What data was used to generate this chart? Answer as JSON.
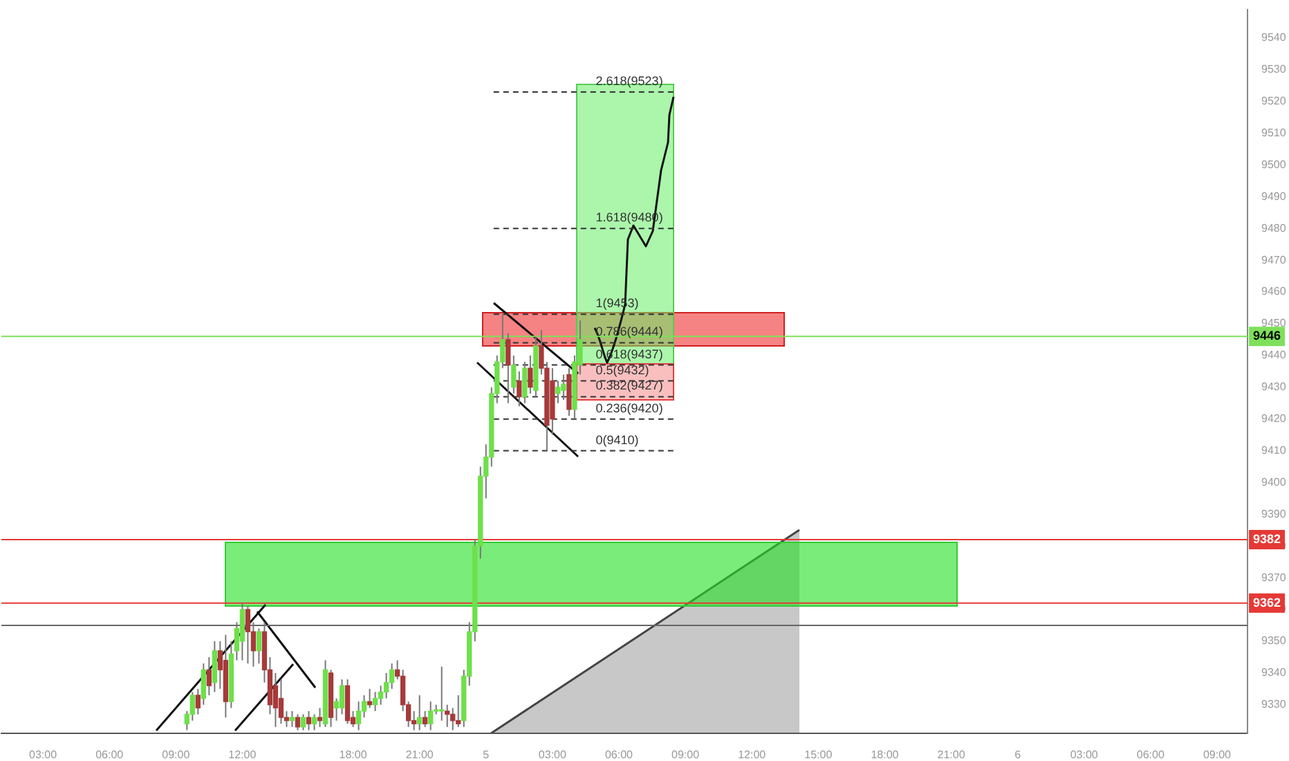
{
  "chart_data": {
    "type": "candlestick",
    "categories": [
      null,
      null,
      null,
      null,
      null,
      null,
      null,
      "03:00",
      null,
      null,
      null,
      null,
      null,
      null,
      null,
      null,
      null,
      null,
      null,
      "06:00",
      null,
      null,
      null,
      null,
      null,
      null,
      null,
      null,
      null,
      null,
      null,
      "09:00",
      null,
      null,
      null,
      null,
      null,
      null,
      null,
      null,
      null,
      null,
      null,
      "12:00",
      null,
      null,
      null,
      null,
      null,
      null,
      null,
      null,
      null,
      null,
      null,
      null,
      null,
      null,
      null,
      null,
      null,
      null,
      null,
      "18:00",
      null,
      null,
      null,
      null,
      null,
      null,
      null,
      null,
      null,
      null,
      null,
      "21:00",
      null,
      null,
      null,
      null,
      null,
      null,
      null,
      null,
      null,
      null,
      null,
      "5",
      null,
      null,
      null,
      null,
      null,
      null,
      null,
      null,
      null,
      null,
      null,
      "03:00",
      null,
      null,
      null,
      null,
      null,
      null,
      null,
      null,
      null,
      null,
      null,
      "06:00",
      null,
      null,
      null,
      null,
      null,
      null,
      null,
      null,
      null,
      null,
      null,
      "09:00",
      null,
      null,
      null,
      null,
      null,
      null,
      null,
      null,
      null,
      null,
      null,
      "12:00",
      null,
      null,
      null,
      null,
      null,
      null,
      null,
      null,
      null,
      null,
      null,
      "15:00",
      null,
      null,
      null,
      null,
      null,
      null,
      null,
      null,
      null,
      null,
      null,
      "18:00",
      null,
      null,
      null,
      null,
      null,
      null,
      null,
      null,
      null,
      null,
      null,
      "21:00",
      null,
      null,
      null,
      null,
      null,
      null,
      null,
      null,
      null,
      null,
      null,
      "6",
      null,
      null,
      null,
      null,
      null,
      null,
      null,
      null,
      null,
      null,
      null,
      "03:00",
      null,
      null,
      null,
      null,
      null,
      null,
      null,
      null,
      null,
      null,
      null,
      "06:00",
      null,
      null,
      null,
      null,
      null,
      null,
      null,
      null,
      null,
      null,
      null,
      "09:00",
      null,
      null,
      null,
      null,
      null
    ],
    "ohlc": [
      null,
      null,
      null,
      null,
      null,
      null,
      null,
      null,
      null,
      null,
      null,
      null,
      null,
      null,
      null,
      null,
      null,
      null,
      null,
      null,
      null,
      null,
      null,
      null,
      null,
      null,
      null,
      null,
      null,
      null,
      null,
      null,
      null,
      [
        9324,
        9328,
        9322,
        9327
      ],
      [
        9327,
        9334,
        9325,
        9333
      ],
      [
        9333,
        9335,
        9327,
        9329
      ],
      [
        9332,
        9343,
        9330,
        9341
      ],
      [
        9341,
        9345,
        9333,
        9336
      ],
      [
        9337,
        9350,
        9334,
        9347
      ],
      [
        9347,
        9350,
        9335,
        9341
      ],
      [
        9344,
        9352,
        9326,
        9331
      ],
      [
        9331,
        9350,
        9329,
        9346
      ],
      [
        9347,
        9356,
        9344,
        9354
      ],
      [
        9350,
        9362,
        9344,
        9360
      ],
      [
        9360,
        9361,
        9343,
        9353
      ],
      [
        9353,
        9356,
        9342,
        9347
      ],
      [
        9347,
        9354,
        9343,
        9353
      ],
      [
        9353,
        9356,
        9337,
        9341
      ],
      [
        9341,
        9345,
        9327,
        9330
      ],
      [
        9336,
        9340,
        9323,
        9329
      ],
      [
        9332,
        9338,
        9324,
        9326
      ],
      [
        9326,
        9328,
        9323,
        9325
      ],
      [
        9325,
        9328,
        9323,
        9326
      ],
      [
        9326,
        9327,
        9322,
        9323
      ],
      [
        9323,
        9327,
        9322,
        9326
      ],
      [
        9326,
        9328,
        9322,
        9324
      ],
      [
        9324,
        9327,
        9322,
        9326
      ],
      [
        9326,
        9329,
        9323,
        9325
      ],
      [
        9324,
        9344,
        9323,
        9341
      ],
      [
        9340,
        9341,
        9323,
        9326
      ],
      [
        9329,
        9332,
        9325,
        9331
      ],
      [
        9329,
        9338,
        9327,
        9336
      ],
      [
        9336,
        9338,
        9324,
        9325
      ],
      [
        9326,
        9328,
        9323,
        9324
      ],
      [
        9324,
        9331,
        9322,
        9328
      ],
      [
        9328,
        9333,
        9326,
        9331
      ],
      [
        9331,
        9335,
        9329,
        9330
      ],
      [
        9330,
        9334,
        9328,
        9332
      ],
      [
        9332,
        9336,
        9330,
        9334
      ],
      [
        9334,
        9340,
        9332,
        9337
      ],
      [
        9337,
        9343,
        9335,
        9341
      ],
      [
        9341,
        9344,
        9338,
        9339
      ],
      [
        9339,
        9341,
        9328,
        9330
      ],
      [
        9330,
        9331,
        9323,
        9325
      ],
      [
        9325,
        9328,
        9322,
        9324
      ],
      [
        9324,
        9333,
        9322,
        9326
      ],
      [
        9326,
        9328,
        9323,
        9324
      ],
      [
        9324,
        9331,
        9322,
        9328
      ],
      [
        9328,
        9330,
        9327,
        9328
      ],
      [
        9328,
        9342,
        9325,
        9328
      ],
      [
        9328,
        9330,
        9323,
        9327
      ],
      [
        9327,
        9329,
        9322,
        9325
      ],
      [
        9325,
        9333,
        9323,
        9324
      ],
      [
        9325,
        9341,
        9323,
        9339
      ],
      [
        9339,
        9356,
        9336,
        9353
      ],
      [
        9353,
        9382,
        9350,
        9380
      ],
      [
        9380,
        9405,
        9376,
        9402
      ],
      [
        9402,
        9412,
        9395,
        9408
      ],
      [
        9408,
        9430,
        9405,
        9428
      ],
      [
        9428,
        9440,
        9425,
        9438
      ],
      [
        9438,
        9453,
        9436,
        9445
      ],
      [
        9445,
        9447,
        9425,
        9437
      ],
      [
        9430,
        9440,
        9428,
        9437
      ],
      [
        9432,
        9435,
        9424,
        9427
      ],
      [
        9427,
        9438,
        9425,
        9436
      ],
      [
        9436,
        9440,
        9428,
        9430
      ],
      [
        9429,
        9446,
        9427,
        9443
      ],
      [
        9443,
        9448,
        9434,
        9436
      ],
      [
        9436,
        9438,
        9410,
        9418
      ],
      [
        9432,
        9436,
        9415,
        9420
      ],
      [
        9428,
        9432,
        9425,
        9430
      ],
      [
        9429,
        9434,
        9426,
        9431
      ],
      [
        9434,
        9436,
        9421,
        9423
      ],
      [
        9423,
        9440,
        9420,
        9438
      ],
      [
        9437,
        9451,
        9434,
        9445
      ],
      null,
      null,
      null,
      null,
      null,
      null,
      null,
      null,
      null,
      null,
      null,
      null,
      null,
      null,
      null,
      null,
      null,
      null,
      null,
      null,
      null,
      null,
      null,
      null,
      null,
      null,
      null,
      null,
      null,
      null,
      null,
      null,
      null,
      null,
      null,
      null,
      null,
      null,
      null,
      null,
      null,
      null,
      null,
      null,
      null,
      null,
      null,
      null,
      null,
      null,
      null,
      null,
      null,
      null,
      null,
      null,
      null,
      null,
      null,
      null,
      null,
      null,
      null,
      null,
      null,
      null,
      null,
      null,
      null,
      null,
      null,
      null,
      null,
      null,
      null,
      null,
      null,
      null,
      null,
      null,
      null,
      null,
      null,
      null,
      null,
      null,
      null,
      null,
      null,
      null,
      null,
      null,
      null,
      null,
      null,
      null,
      null,
      null,
      null,
      null,
      null,
      null,
      null,
      null,
      null,
      null,
      null,
      null,
      null,
      null,
      null,
      null,
      null,
      null,
      null,
      null,
      null,
      null,
      null,
      null
    ],
    "colors": [
      null,
      null,
      null,
      null,
      null,
      null,
      null,
      null,
      null,
      null,
      null,
      null,
      null,
      null,
      null,
      null,
      null,
      null,
      null,
      null,
      null,
      null,
      null,
      null,
      null,
      null,
      null,
      null,
      null,
      null,
      null,
      null,
      null,
      "#6ee04a",
      "#6ee04a",
      "#a63a3a",
      "#6ee04a",
      "#a63a3a",
      "#6ee04a",
      "#a63a3a",
      "#a63a3a",
      "#6ee04a",
      "#6ee04a",
      "#6ee04a",
      "#a63a3a",
      "#a63a3a",
      "#6ee04a",
      "#a63a3a",
      "#a63a3a",
      "#a63a3a",
      "#a63a3a",
      "#a63a3a",
      "#6ee04a",
      "#a63a3a",
      "#6ee04a",
      "#a63a3a",
      "#6ee04a",
      "#a63a3a",
      "#6ee04a",
      "#a63a3a",
      "#6ee04a",
      "#6ee04a",
      "#a63a3a",
      "#a63a3a",
      "#6ee04a",
      "#6ee04a",
      "#a63a3a",
      "#6ee04a",
      "#6ee04a",
      "#6ee04a",
      "#6ee04a",
      "#a63a3a",
      "#a63a3a",
      "#a63a3a",
      "#a63a3a",
      "#6ee04a",
      "#a63a3a",
      "#6ee04a",
      "#6ee04a",
      "#6ee04a",
      "#a63a3a",
      "#a63a3a",
      "#a63a3a",
      "#6ee04a",
      "#6ee04a",
      "#6ee04a",
      "#6ee04a",
      "#6ee04a",
      "#6ee04a",
      "#6ee04a",
      "#6ee04a",
      "#a63a3a",
      "#6ee04a",
      "#a63a3a",
      "#6ee04a",
      "#a63a3a",
      "#6ee04a",
      "#a63a3a",
      "#a63a3a",
      "#a63a3a",
      "#6ee04a",
      "#6ee04a",
      "#a63a3a",
      "#6ee04a",
      "#6ee04a",
      null,
      null,
      null,
      null,
      null,
      null,
      null,
      null,
      null,
      null,
      null,
      null,
      null,
      null,
      null,
      null,
      null,
      null,
      null,
      null,
      null,
      null,
      null,
      null,
      null,
      null,
      null,
      null,
      null,
      null,
      null,
      null,
      null,
      null,
      null,
      null,
      null,
      null,
      null,
      null,
      null,
      null,
      null,
      null,
      null,
      null,
      null,
      null,
      null,
      null,
      null,
      null,
      null,
      null,
      null,
      null,
      null,
      null,
      null,
      null,
      null,
      null,
      null,
      null,
      null,
      null,
      null,
      null,
      null,
      null,
      null,
      null,
      null,
      null,
      null,
      null,
      null,
      null,
      null,
      null,
      null,
      null,
      null,
      null,
      null,
      null,
      null,
      null,
      null,
      null,
      null,
      null,
      null,
      null,
      null,
      null,
      null,
      null,
      null,
      null,
      null,
      null,
      null,
      null,
      null,
      null,
      null,
      null,
      null,
      null,
      null,
      null,
      null,
      null,
      null,
      null,
      null,
      null,
      null,
      null
    ],
    "ylim": [
      9321,
      9549
    ],
    "yticks": [
      9330,
      9340,
      9350,
      9360,
      9370,
      9380,
      9390,
      9400,
      9410,
      9420,
      9430,
      9440,
      9450,
      9460,
      9470,
      9480,
      9490,
      9500,
      9510,
      9520,
      9530,
      9540
    ],
    "ref_lines": [
      {
        "axis": "y",
        "value": 9446,
        "label": "9446",
        "color": "#7ee05a",
        "line_style": "solid"
      },
      {
        "axis": "y",
        "value": 9382,
        "label": "9382",
        "color": "#e53935",
        "line_style": "solid"
      },
      {
        "axis": "y",
        "value": 9362,
        "label": "9362",
        "color": "#e53935",
        "line_style": "solid"
      },
      {
        "axis": "y",
        "value": 9355,
        "color": "#666666",
        "line_style": "solid"
      },
      {
        "axis": "y",
        "value": 9523,
        "label": "2.618(9523)",
        "color": "#333333",
        "line_style": "dashed"
      },
      {
        "axis": "y",
        "value": 9480,
        "label": "1.618(9480)",
        "color": "#333333",
        "line_style": "dashed"
      },
      {
        "axis": "y",
        "value": 9453,
        "label": "1(9453)",
        "color": "#333333",
        "line_style": "dashed"
      },
      {
        "axis": "y",
        "value": 9444,
        "label": "0.786(9444)",
        "color": "#333333",
        "line_style": "dashed"
      },
      {
        "axis": "y",
        "value": 9437,
        "label": "0.618(9437)",
        "color": "#333333",
        "line_style": "dashed"
      },
      {
        "axis": "y",
        "value": 9432,
        "label": "0.5(9432)",
        "color": "#333333",
        "line_style": "dashed"
      },
      {
        "axis": "y",
        "value": 9427,
        "label": "0.382(9427)",
        "color": "#333333",
        "line_style": "dashed"
      },
      {
        "axis": "y",
        "value": 9420,
        "label": "0.236(9420)",
        "color": "#333333",
        "line_style": "dashed"
      },
      {
        "axis": "y",
        "value": 9410,
        "label": "0(9410)",
        "color": "#333333",
        "line_style": "dashed"
      }
    ],
    "grid": false,
    "legend": false
  }
}
